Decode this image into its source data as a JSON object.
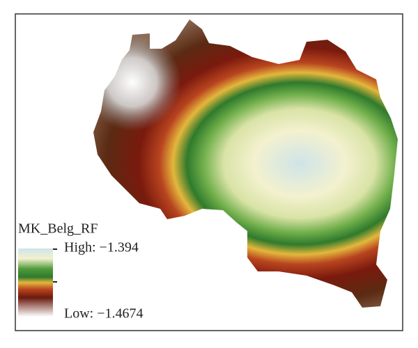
{
  "legend": {
    "title": "MK_Belg_RF",
    "high": "High: −1.394",
    "low": "Low: −1.4674"
  }
}
